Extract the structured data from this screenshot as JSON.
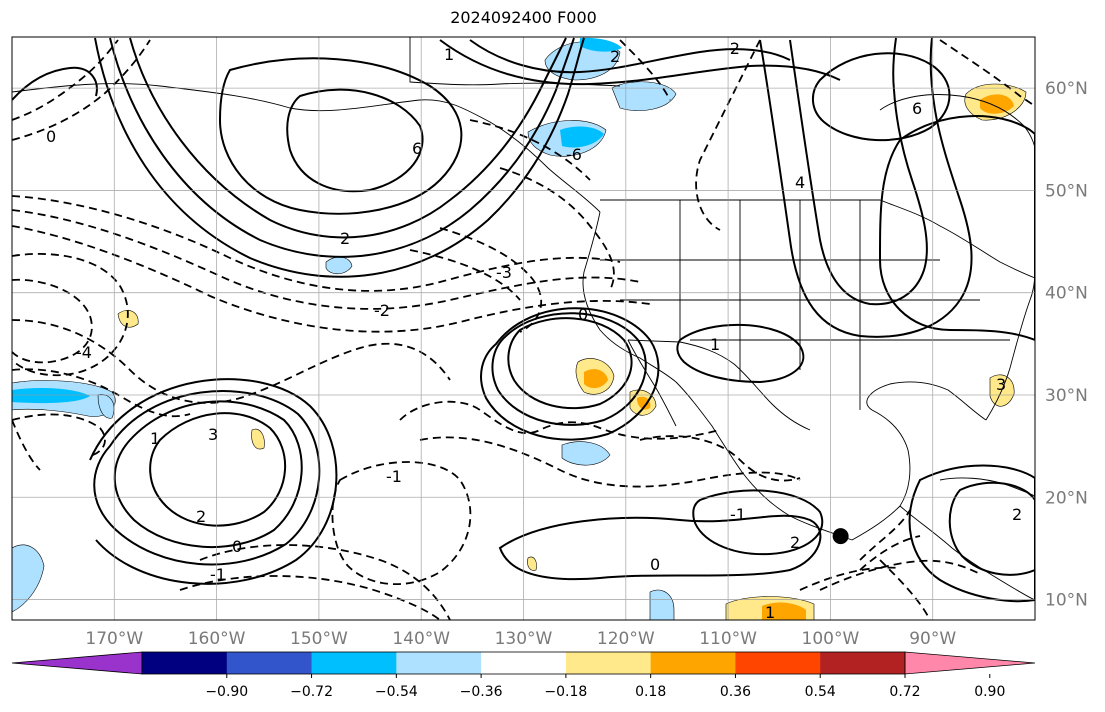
{
  "title": "2024092400 F000",
  "map": {
    "projection": "cylindrical",
    "lon_range": [
      -180,
      -80
    ],
    "lat_range": [
      8,
      65
    ],
    "gridlines": true,
    "x_ticks": [
      {
        "lon": -170,
        "label": "170°W"
      },
      {
        "lon": -160,
        "label": "160°W"
      },
      {
        "lon": -150,
        "label": "150°W"
      },
      {
        "lon": -140,
        "label": "140°W"
      },
      {
        "lon": -130,
        "label": "130°W"
      },
      {
        "lon": -120,
        "label": "120°W"
      },
      {
        "lon": -110,
        "label": "110°W"
      },
      {
        "lon": -100,
        "label": "100°W"
      },
      {
        "lon": -90,
        "label": "90°W"
      }
    ],
    "y_ticks": [
      {
        "lat": 60,
        "label": "60°N"
      },
      {
        "lat": 50,
        "label": "50°N"
      },
      {
        "lat": 40,
        "label": "40°N"
      },
      {
        "lat": 30,
        "label": "30°N"
      },
      {
        "lat": 20,
        "label": "20°N"
      },
      {
        "lat": 10,
        "label": "10°N"
      }
    ],
    "marker": {
      "name": "storm-center",
      "lon": -99,
      "lat": 16.2,
      "color": "#000000"
    },
    "contour_labels": [
      "6",
      "2",
      "0",
      "-2",
      "-3",
      "-1",
      "-4",
      "3",
      "1",
      "2",
      "-1",
      "0",
      "0",
      "1",
      "2",
      "-1",
      "2",
      "4",
      "6",
      "0",
      "3",
      "1",
      "2",
      "-2",
      "-6",
      "1"
    ]
  },
  "colorbar": {
    "colors": [
      "#9933cc",
      "#000080",
      "#3355cc",
      "#00bfff",
      "#aee0ff",
      "#ffffff",
      "#ffe98a",
      "#ffa500",
      "#ff4500",
      "#b22222",
      "#ff88aa"
    ],
    "ticks": [
      "−0.90",
      "−0.72",
      "−0.54",
      "−0.36",
      "−0.18",
      "0.18",
      "0.36",
      "0.54",
      "0.72",
      "0.90"
    ]
  }
}
